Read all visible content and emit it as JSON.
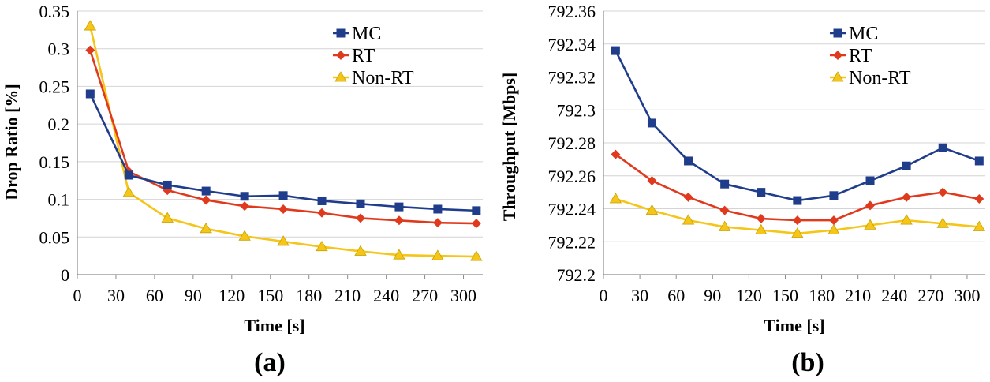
{
  "chart_data": [
    {
      "type": "line",
      "caption": "(a)",
      "xlabel": "Time [s]",
      "ylabel": "Drop Ratio [%]",
      "x_ticks": [
        "0",
        "30",
        "60",
        "90",
        "120",
        "150",
        "180",
        "210",
        "240",
        "270",
        "300"
      ],
      "y_ticks": [
        "0",
        "0.05",
        "0.1",
        "0.15",
        "0.2",
        "0.25",
        "0.3",
        "0.35"
      ],
      "xlim": [
        0,
        315
      ],
      "ylim": [
        0,
        0.35
      ],
      "grid": "horizontal",
      "legend_position": "top-right",
      "x": [
        10,
        40,
        70,
        100,
        130,
        160,
        190,
        220,
        250,
        280,
        310
      ],
      "series": [
        {
          "name": "MC",
          "color": "#1f3d8a",
          "marker": "square",
          "values": [
            0.24,
            0.132,
            0.119,
            0.111,
            0.104,
            0.105,
            0.098,
            0.094,
            0.09,
            0.087,
            0.085
          ]
        },
        {
          "name": "RT",
          "color": "#e03a1e",
          "marker": "diamond",
          "values": [
            0.298,
            0.137,
            0.112,
            0.099,
            0.091,
            0.087,
            0.082,
            0.075,
            0.072,
            0.069,
            0.068
          ]
        },
        {
          "name": "Non-RT",
          "color": "#f5c518",
          "marker": "triangle",
          "values": [
            0.33,
            0.109,
            0.075,
            0.061,
            0.051,
            0.044,
            0.037,
            0.031,
            0.026,
            0.025,
            0.024
          ]
        }
      ]
    },
    {
      "type": "line",
      "caption": "(b)",
      "xlabel": "Time [s]",
      "ylabel": "Throughput [Mbps]",
      "x_ticks": [
        "0",
        "30",
        "60",
        "90",
        "120",
        "150",
        "180",
        "210",
        "240",
        "270",
        "300"
      ],
      "y_ticks": [
        "792.2",
        "792.22",
        "792.24",
        "792.26",
        "792.28",
        "792.3",
        "792.32",
        "792.34",
        "792.36"
      ],
      "xlim": [
        0,
        315
      ],
      "ylim": [
        792.2,
        792.36
      ],
      "grid": "horizontal",
      "legend_position": "top-right",
      "x": [
        10,
        40,
        70,
        100,
        130,
        160,
        190,
        220,
        250,
        280,
        310
      ],
      "series": [
        {
          "name": "MC",
          "color": "#1f3d8a",
          "marker": "square",
          "values": [
            792.336,
            792.292,
            792.269,
            792.255,
            792.25,
            792.245,
            792.248,
            792.257,
            792.266,
            792.277,
            792.269
          ]
        },
        {
          "name": "RT",
          "color": "#e03a1e",
          "marker": "diamond",
          "values": [
            792.273,
            792.257,
            792.247,
            792.239,
            792.234,
            792.233,
            792.233,
            792.242,
            792.247,
            792.25,
            792.246
          ]
        },
        {
          "name": "Non-RT",
          "color": "#f5c518",
          "marker": "triangle",
          "values": [
            792.246,
            792.239,
            792.233,
            792.229,
            792.227,
            792.225,
            792.227,
            792.23,
            792.233,
            792.231,
            792.229
          ]
        }
      ]
    }
  ]
}
